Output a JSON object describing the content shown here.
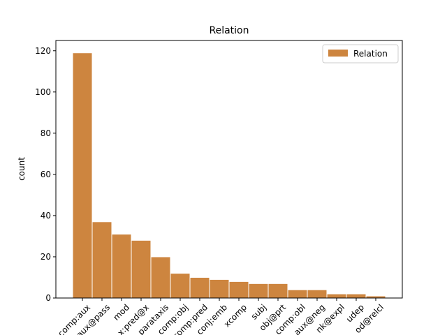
{
  "chart_data": {
    "type": "bar",
    "title": "Relation",
    "ylabel": "count",
    "categories": [
      "comp:aux",
      "aux@pass",
      "mod",
      "x:pred@x",
      "parataxis",
      "comp:obj",
      "comp:pred",
      "conj:emb",
      "xcomp",
      "subj",
      "obj@prt",
      "comp:obl",
      "aux@neg",
      "nk@expl",
      "udep",
      "od@relcl"
    ],
    "series": [
      {
        "name": "Relation",
        "color": "#cd853f",
        "values": [
          119,
          37,
          31,
          28,
          20,
          12,
          10,
          9,
          8,
          7,
          7,
          4,
          4,
          2,
          2,
          1
        ]
      }
    ],
    "ylim": [
      0,
      125
    ],
    "yticks": [
      0,
      20,
      40,
      60,
      80,
      100,
      120
    ],
    "legend": "upper right"
  }
}
